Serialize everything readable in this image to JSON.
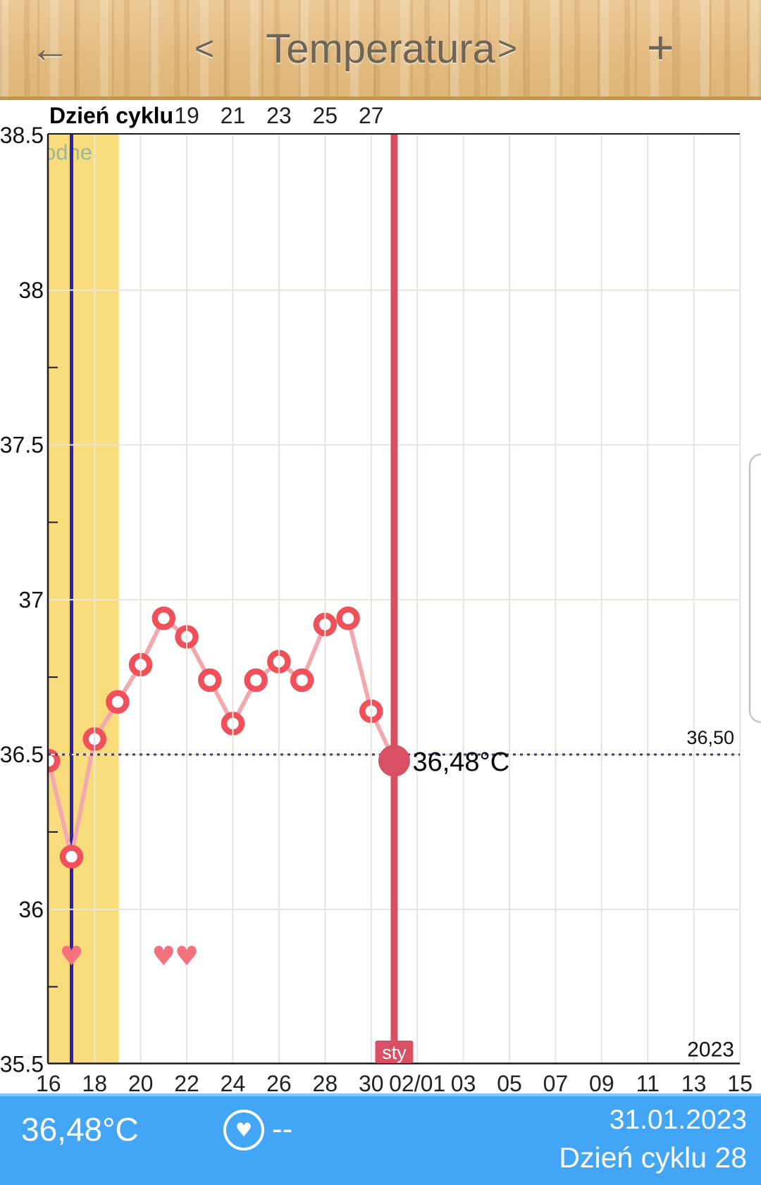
{
  "header": {
    "back_icon": "←",
    "prev_icon": "<",
    "title": "Temperatura",
    "next_icon": ">",
    "add_icon": "+"
  },
  "chart_data": {
    "type": "line",
    "title": "Temperatura",
    "top_axis": {
      "title": "Dzień cyklu",
      "ticks": [
        {
          "label": "19",
          "day": 6
        },
        {
          "label": "21",
          "day": 8
        },
        {
          "label": "23",
          "day": 10
        },
        {
          "label": "25",
          "day": 12
        },
        {
          "label": "27",
          "day": 14
        }
      ]
    },
    "y_axis": {
      "unit": "°C",
      "range": [
        35.5,
        38.5
      ],
      "ticks": [
        {
          "label": "38.5",
          "value": 38.5
        },
        {
          "label": "38",
          "value": 38.0
        },
        {
          "label": "37.5",
          "value": 37.5
        },
        {
          "label": "37",
          "value": 37.0
        },
        {
          "label": "36.5",
          "value": 36.5
        },
        {
          "label": "36",
          "value": 36.0
        },
        {
          "label": "35.5",
          "value": 35.5
        }
      ],
      "minor_ticks": [
        37.75,
        37.25,
        36.75,
        36.25,
        35.75
      ]
    },
    "x_axis": {
      "year": "2023",
      "ticks": [
        {
          "label": "16",
          "day": 0
        },
        {
          "label": "18",
          "day": 2
        },
        {
          "label": "20",
          "day": 4
        },
        {
          "label": "22",
          "day": 6
        },
        {
          "label": "24",
          "day": 8
        },
        {
          "label": "26",
          "day": 10
        },
        {
          "label": "28",
          "day": 12
        },
        {
          "label": "30",
          "day": 14
        },
        {
          "label": "02/01",
          "day": 16
        },
        {
          "label": "03",
          "day": 18
        },
        {
          "label": "05",
          "day": 20
        },
        {
          "label": "07",
          "day": 22
        },
        {
          "label": "09",
          "day": 24
        },
        {
          "label": "11",
          "day": 26
        },
        {
          "label": "13",
          "day": 28
        },
        {
          "label": "15",
          "day": 30
        }
      ]
    },
    "series": [
      {
        "name": "temperature",
        "points": [
          {
            "day": 0,
            "temp": 36.48
          },
          {
            "day": 1,
            "temp": 36.17
          },
          {
            "day": 2,
            "temp": 36.55
          },
          {
            "day": 3,
            "temp": 36.67
          },
          {
            "day": 4,
            "temp": 36.79
          },
          {
            "day": 5,
            "temp": 36.94
          },
          {
            "day": 6,
            "temp": 36.88
          },
          {
            "day": 7,
            "temp": 36.74
          },
          {
            "day": 8,
            "temp": 36.6
          },
          {
            "day": 9,
            "temp": 36.74
          },
          {
            "day": 10,
            "temp": 36.8
          },
          {
            "day": 11,
            "temp": 36.74
          },
          {
            "day": 12,
            "temp": 36.92
          },
          {
            "day": 13,
            "temp": 36.94
          },
          {
            "day": 14,
            "temp": 36.64
          },
          {
            "day": 15,
            "temp": 36.48
          }
        ]
      }
    ],
    "hearts_days": [
      1,
      5,
      6
    ],
    "fertile_band": {
      "from_day": 0,
      "to_day": 3.05,
      "label": "odne"
    },
    "ovulation_line_day": 1,
    "selected": {
      "day": 15,
      "temp": 36.48,
      "label": "36,48°C"
    },
    "reference_line": {
      "temp": 36.5,
      "label": "36,50"
    },
    "month_marker": {
      "day": 15,
      "label": "sty"
    },
    "legend": false,
    "grid": true
  },
  "colors": {
    "accent_rose": "#d95065",
    "marker_red": "#ef5059",
    "line_pink": "#f2a9ad",
    "band_yellow": "#f8dc7c",
    "ovulation_blue": "#2b22b5",
    "footer_blue": "#42a5f5",
    "heart_pink": "#f4717d",
    "ref_navy": "#3d3d70",
    "grid_gray": "#e8e4dc",
    "fertile_text": "#8cb4a8"
  },
  "footer": {
    "temperature": "36,48°C",
    "note_dash": "--",
    "date": "31.01.2023",
    "cycle_day": "Dzień cyklu 28"
  }
}
